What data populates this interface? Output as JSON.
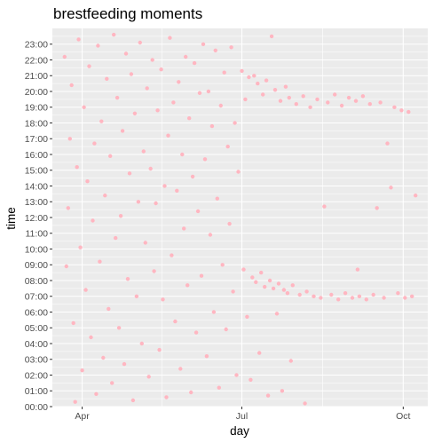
{
  "chart_data": {
    "type": "scatter",
    "title": "brestfeeding moments",
    "xlabel": "day",
    "ylabel": "time",
    "x_range": [
      "2018-03-15",
      "2018-10-15"
    ],
    "y_range": [
      0,
      24
    ],
    "x_ticks": [
      {
        "date": "2018-04-01",
        "label": "Apr"
      },
      {
        "date": "2018-07-01",
        "label": "Jul"
      },
      {
        "date": "2018-10-01",
        "label": "Oct"
      }
    ],
    "y_ticks": [
      "00:00",
      "01:00",
      "02:00",
      "03:00",
      "04:00",
      "05:00",
      "06:00",
      "07:00",
      "08:00",
      "09:00",
      "10:00",
      "11:00",
      "12:00",
      "13:00",
      "14:00",
      "15:00",
      "16:00",
      "17:00",
      "18:00",
      "19:00",
      "20:00",
      "21:00",
      "22:00",
      "23:00"
    ],
    "grid": true,
    "legend": "none",
    "colors": {
      "panel": "#ebebeb",
      "grid": "#ffffff",
      "point": "#ffb6c1"
    },
    "series": [
      {
        "points": [
          [
            "2018-03-22",
            22.2
          ],
          [
            "2018-03-23",
            8.9
          ],
          [
            "2018-03-24",
            12.6
          ],
          [
            "2018-03-25",
            17.0
          ],
          [
            "2018-03-26",
            20.4
          ],
          [
            "2018-03-27",
            5.3
          ],
          [
            "2018-03-28",
            0.3
          ],
          [
            "2018-03-29",
            15.2
          ],
          [
            "2018-03-30",
            23.3
          ],
          [
            "2018-03-31",
            10.1
          ],
          [
            "2018-04-01",
            2.3
          ],
          [
            "2018-04-02",
            19.0
          ],
          [
            "2018-04-03",
            7.4
          ],
          [
            "2018-04-04",
            14.3
          ],
          [
            "2018-04-05",
            21.6
          ],
          [
            "2018-04-06",
            4.4
          ],
          [
            "2018-04-07",
            11.8
          ],
          [
            "2018-04-08",
            16.7
          ],
          [
            "2018-04-09",
            0.8
          ],
          [
            "2018-04-10",
            22.9
          ],
          [
            "2018-04-11",
            9.2
          ],
          [
            "2018-04-12",
            18.1
          ],
          [
            "2018-04-13",
            3.1
          ],
          [
            "2018-04-14",
            13.4
          ],
          [
            "2018-04-15",
            20.8
          ],
          [
            "2018-04-16",
            6.2
          ],
          [
            "2018-04-17",
            15.9
          ],
          [
            "2018-04-18",
            1.5
          ],
          [
            "2018-04-19",
            23.6
          ],
          [
            "2018-04-20",
            10.7
          ],
          [
            "2018-04-21",
            19.6
          ],
          [
            "2018-04-22",
            5.0
          ],
          [
            "2018-04-23",
            12.1
          ],
          [
            "2018-04-24",
            17.5
          ],
          [
            "2018-04-25",
            2.7
          ],
          [
            "2018-04-26",
            22.4
          ],
          [
            "2018-04-27",
            8.1
          ],
          [
            "2018-04-28",
            14.8
          ],
          [
            "2018-04-29",
            21.1
          ],
          [
            "2018-04-30",
            0.4
          ],
          [
            "2018-05-01",
            18.6
          ],
          [
            "2018-05-02",
            7.0
          ],
          [
            "2018-05-03",
            13.0
          ],
          [
            "2018-05-04",
            23.1
          ],
          [
            "2018-05-05",
            4.0
          ],
          [
            "2018-05-06",
            16.2
          ],
          [
            "2018-05-07",
            10.4
          ],
          [
            "2018-05-08",
            20.2
          ],
          [
            "2018-05-09",
            1.9
          ],
          [
            "2018-05-10",
            15.1
          ],
          [
            "2018-05-11",
            22.0
          ],
          [
            "2018-05-12",
            8.6
          ],
          [
            "2018-05-13",
            12.9
          ],
          [
            "2018-05-14",
            18.8
          ],
          [
            "2018-05-15",
            3.6
          ],
          [
            "2018-05-16",
            21.4
          ],
          [
            "2018-05-17",
            6.8
          ],
          [
            "2018-05-18",
            14.0
          ],
          [
            "2018-05-19",
            0.6
          ],
          [
            "2018-05-20",
            17.2
          ],
          [
            "2018-05-21",
            23.4
          ],
          [
            "2018-05-22",
            9.6
          ],
          [
            "2018-05-23",
            19.3
          ],
          [
            "2018-05-24",
            5.4
          ],
          [
            "2018-05-25",
            13.7
          ],
          [
            "2018-05-26",
            20.6
          ],
          [
            "2018-05-27",
            2.4
          ],
          [
            "2018-05-28",
            16.0
          ],
          [
            "2018-05-29",
            11.3
          ],
          [
            "2018-05-30",
            22.2
          ],
          [
            "2018-05-31",
            7.7
          ],
          [
            "2018-06-01",
            18.3
          ],
          [
            "2018-06-02",
            0.9
          ],
          [
            "2018-06-03",
            14.6
          ],
          [
            "2018-06-04",
            21.8
          ],
          [
            "2018-06-05",
            4.7
          ],
          [
            "2018-06-06",
            12.4
          ],
          [
            "2018-06-07",
            19.9
          ],
          [
            "2018-06-08",
            8.3
          ],
          [
            "2018-06-09",
            23.0
          ],
          [
            "2018-06-10",
            15.7
          ],
          [
            "2018-06-11",
            3.2
          ],
          [
            "2018-06-12",
            20.0
          ],
          [
            "2018-06-13",
            10.9
          ],
          [
            "2018-06-14",
            17.8
          ],
          [
            "2018-06-15",
            6.0
          ],
          [
            "2018-06-16",
            22.6
          ],
          [
            "2018-06-17",
            13.2
          ],
          [
            "2018-06-18",
            1.2
          ],
          [
            "2018-06-19",
            19.1
          ],
          [
            "2018-06-20",
            9.0
          ],
          [
            "2018-06-21",
            21.2
          ],
          [
            "2018-06-22",
            4.9
          ],
          [
            "2018-06-23",
            16.5
          ],
          [
            "2018-06-24",
            11.6
          ],
          [
            "2018-06-25",
            22.8
          ],
          [
            "2018-06-26",
            7.3
          ],
          [
            "2018-06-27",
            18.0
          ],
          [
            "2018-06-28",
            2.0
          ],
          [
            "2018-06-29",
            14.9
          ],
          [
            "2018-07-01",
            21.3
          ],
          [
            "2018-07-02",
            8.7
          ],
          [
            "2018-07-03",
            19.5
          ],
          [
            "2018-07-04",
            5.7
          ],
          [
            "2018-07-05",
            20.9
          ],
          [
            "2018-07-06",
            1.7
          ],
          [
            "2018-07-07",
            8.2
          ],
          [
            "2018-07-08",
            21.0
          ],
          [
            "2018-07-09",
            7.9
          ],
          [
            "2018-07-10",
            20.5
          ],
          [
            "2018-07-11",
            3.4
          ],
          [
            "2018-07-12",
            8.5
          ],
          [
            "2018-07-13",
            19.8
          ],
          [
            "2018-07-14",
            7.6
          ],
          [
            "2018-07-15",
            20.7
          ],
          [
            "2018-07-16",
            0.7
          ],
          [
            "2018-07-17",
            8.0
          ],
          [
            "2018-07-18",
            23.5
          ],
          [
            "2018-07-19",
            7.5
          ],
          [
            "2018-07-20",
            20.1
          ],
          [
            "2018-07-21",
            5.9
          ],
          [
            "2018-07-22",
            7.8
          ],
          [
            "2018-07-23",
            19.4
          ],
          [
            "2018-07-24",
            1.0
          ],
          [
            "2018-07-25",
            7.4
          ],
          [
            "2018-07-26",
            20.3
          ],
          [
            "2018-07-27",
            7.2
          ],
          [
            "2018-07-28",
            19.6
          ],
          [
            "2018-07-29",
            2.9
          ],
          [
            "2018-07-30",
            7.7
          ],
          [
            "2018-08-01",
            19.2
          ],
          [
            "2018-08-03",
            7.1
          ],
          [
            "2018-08-05",
            19.7
          ],
          [
            "2018-08-06",
            0.2
          ],
          [
            "2018-08-07",
            7.3
          ],
          [
            "2018-08-09",
            19.0
          ],
          [
            "2018-08-11",
            7.0
          ],
          [
            "2018-08-13",
            19.5
          ],
          [
            "2018-08-15",
            6.9
          ],
          [
            "2018-08-17",
            12.7
          ],
          [
            "2018-08-19",
            19.3
          ],
          [
            "2018-08-21",
            7.1
          ],
          [
            "2018-08-23",
            19.8
          ],
          [
            "2018-08-25",
            6.8
          ],
          [
            "2018-08-27",
            19.1
          ],
          [
            "2018-08-29",
            7.2
          ],
          [
            "2018-08-31",
            19.6
          ],
          [
            "2018-09-02",
            6.9
          ],
          [
            "2018-09-04",
            19.4
          ],
          [
            "2018-09-05",
            8.7
          ],
          [
            "2018-09-06",
            7.0
          ],
          [
            "2018-09-08",
            19.7
          ],
          [
            "2018-09-10",
            6.8
          ],
          [
            "2018-09-12",
            19.2
          ],
          [
            "2018-09-14",
            7.1
          ],
          [
            "2018-09-16",
            12.6
          ],
          [
            "2018-09-18",
            19.3
          ],
          [
            "2018-09-20",
            6.9
          ],
          [
            "2018-09-22",
            16.7
          ],
          [
            "2018-09-24",
            13.9
          ],
          [
            "2018-09-26",
            19.0
          ],
          [
            "2018-09-28",
            7.2
          ],
          [
            "2018-09-30",
            18.8
          ],
          [
            "2018-10-02",
            6.9
          ],
          [
            "2018-10-04",
            18.7
          ],
          [
            "2018-10-06",
            7.0
          ],
          [
            "2018-10-08",
            13.4
          ]
        ]
      }
    ]
  }
}
